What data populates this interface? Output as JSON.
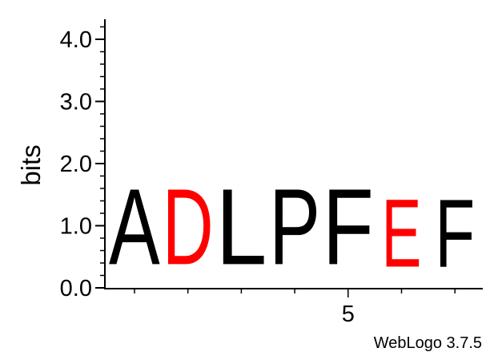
{
  "chart_data": {
    "type": "sequence-logo",
    "ylabel": "bits",
    "ylim": [
      0,
      4.0
    ],
    "y_ticks": [
      "0.0",
      "1.0",
      "2.0",
      "3.0",
      "4.0"
    ],
    "x_tick_labels": [
      {
        "position": 5,
        "label": "5"
      }
    ],
    "positions": [
      1,
      2,
      3,
      4,
      5,
      6,
      7
    ],
    "columns": [
      {
        "position": 1,
        "letter": "A",
        "height": 1.95,
        "color": "#000000"
      },
      {
        "position": 2,
        "letter": "D",
        "height": 1.95,
        "color": "#ff0000"
      },
      {
        "position": 3,
        "letter": "L",
        "height": 1.95,
        "color": "#000000"
      },
      {
        "position": 4,
        "letter": "P",
        "height": 1.95,
        "color": "#000000"
      },
      {
        "position": 5,
        "letter": "F",
        "height": 1.95,
        "color": "#000000"
      },
      {
        "position": 6,
        "letter": "E",
        "height": 1.75,
        "color": "#ff0000"
      },
      {
        "position": 7,
        "letter": "F",
        "height": 1.75,
        "color": "#000000"
      }
    ],
    "footer": "WebLogo 3.7.5"
  }
}
